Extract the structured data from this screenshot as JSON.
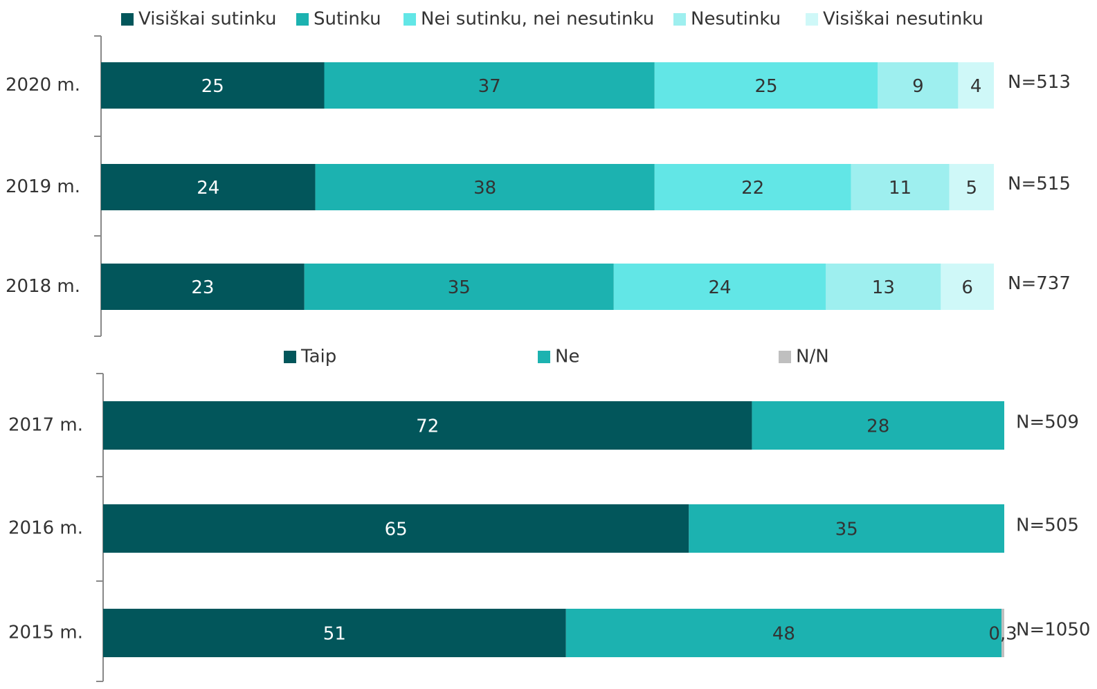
{
  "chart_data": [
    {
      "type": "bar",
      "categories": [
        "2020 m.",
        "2019 m.",
        "2018 m."
      ],
      "series": [
        {
          "name": "Visiškai sutinku",
          "color": "#02565b",
          "values": [
            25,
            24,
            23
          ]
        },
        {
          "name": "Sutinku",
          "color": "#1cb2b0",
          "values": [
            37,
            38,
            35
          ]
        },
        {
          "name": "Nei sutinku, nei nesutinku",
          "color": "#62e6e6",
          "values": [
            25,
            22,
            24
          ]
        },
        {
          "name": "Nesutinku",
          "color": "#9eefef",
          "values": [
            9,
            11,
            13
          ]
        },
        {
          "name": "Visiškai nesutinku",
          "color": "#cff8f8",
          "values": [
            4,
            5,
            6
          ]
        }
      ],
      "annotations": [
        "N=513",
        "N=515",
        "N=737"
      ]
    },
    {
      "type": "bar",
      "categories": [
        "2017 m.",
        "2016 m.",
        "2015 m."
      ],
      "series": [
        {
          "name": "Taip",
          "color": "#02565b",
          "values": [
            72,
            65,
            51
          ]
        },
        {
          "name": "Ne",
          "color": "#1cb2b0",
          "values": [
            28,
            35,
            48
          ]
        },
        {
          "name": "N/N",
          "color": "#bfbfbf",
          "values": [
            null,
            null,
            0.3
          ],
          "value_labels": [
            null,
            null,
            "0,3"
          ]
        }
      ],
      "annotations": [
        "N=509",
        "N=505",
        "N=1050"
      ]
    }
  ]
}
